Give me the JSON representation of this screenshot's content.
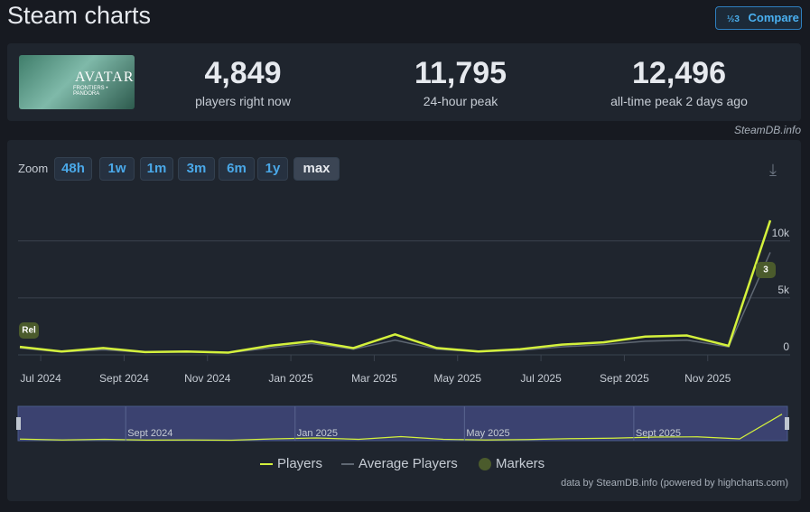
{
  "header": {
    "title": "Steam charts",
    "compare_button": "Compare"
  },
  "game_image": {
    "title": "AVATAR",
    "subtitle": "FRONTIERS • PANDORA"
  },
  "stats": [
    {
      "value": "4,849",
      "label": "players right now"
    },
    {
      "value": "11,795",
      "label": "24-hour peak"
    },
    {
      "value": "12,496",
      "label": "all-time peak 2 days ago"
    }
  ],
  "source": "SteamDB.info",
  "zoom": {
    "label": "Zoom",
    "buttons": [
      "48h",
      "1w",
      "1m",
      "3m",
      "6m",
      "1y",
      "max"
    ],
    "active": "max"
  },
  "chart_data": {
    "type": "line",
    "x": [
      "2024-06",
      "2024-07",
      "2024-08",
      "2024-09",
      "2024-10",
      "2024-11",
      "2024-12",
      "2025-01",
      "2025-02",
      "2025-03",
      "2025-04",
      "2025-05",
      "2025-06",
      "2025-07",
      "2025-08",
      "2025-09",
      "2025-10",
      "2025-11",
      "2025-12"
    ],
    "series": [
      {
        "name": "Players",
        "color": "#d4f13c",
        "values": [
          700,
          300,
          600,
          250,
          300,
          200,
          800,
          1200,
          600,
          1800,
          600,
          300,
          500,
          900,
          1100,
          1600,
          1700,
          800,
          11800
        ]
      },
      {
        "name": "Average Players",
        "color": "#5f6873",
        "values": [
          600,
          250,
          450,
          220,
          250,
          180,
          600,
          1000,
          500,
          1300,
          500,
          260,
          400,
          700,
          900,
          1200,
          1300,
          700,
          9000
        ]
      }
    ],
    "xlim": [
      "2024-06",
      "2025-12"
    ],
    "xticks": [
      {
        "value": "2024-07",
        "label": "Jul 2024"
      },
      {
        "value": "2024-09",
        "label": "Sept 2024"
      },
      {
        "value": "2024-11",
        "label": "Nov 2024"
      },
      {
        "value": "2025-01",
        "label": "Jan 2025"
      },
      {
        "value": "2025-03",
        "label": "Mar 2025"
      },
      {
        "value": "2025-05",
        "label": "May 2025"
      },
      {
        "value": "2025-07",
        "label": "Jul 2025"
      },
      {
        "value": "2025-09",
        "label": "Sept 2025"
      },
      {
        "value": "2025-11",
        "label": "Nov 2025"
      }
    ],
    "ylim": [
      0,
      14500
    ],
    "yticks": [
      0,
      {
        "value": 5000,
        "label": "5k"
      },
      {
        "value": 10000,
        "label": "10k"
      }
    ],
    "grid": true,
    "markers": [
      {
        "x": "2024-06",
        "label": "Rel"
      },
      {
        "x": "2025-12",
        "label": "3"
      }
    ],
    "marker_color": "#4b5b2c",
    "legend_markers": "Markers",
    "navigator_ticks": [
      {
        "value": "2024-09",
        "label": "Sept 2024"
      },
      {
        "value": "2025-01",
        "label": "Jan 2025"
      },
      {
        "value": "2025-05",
        "label": "May 2025"
      },
      {
        "value": "2025-09",
        "label": "Sept 2025"
      }
    ]
  },
  "credits": "data by SteamDB.info (powered by highcharts.com)"
}
